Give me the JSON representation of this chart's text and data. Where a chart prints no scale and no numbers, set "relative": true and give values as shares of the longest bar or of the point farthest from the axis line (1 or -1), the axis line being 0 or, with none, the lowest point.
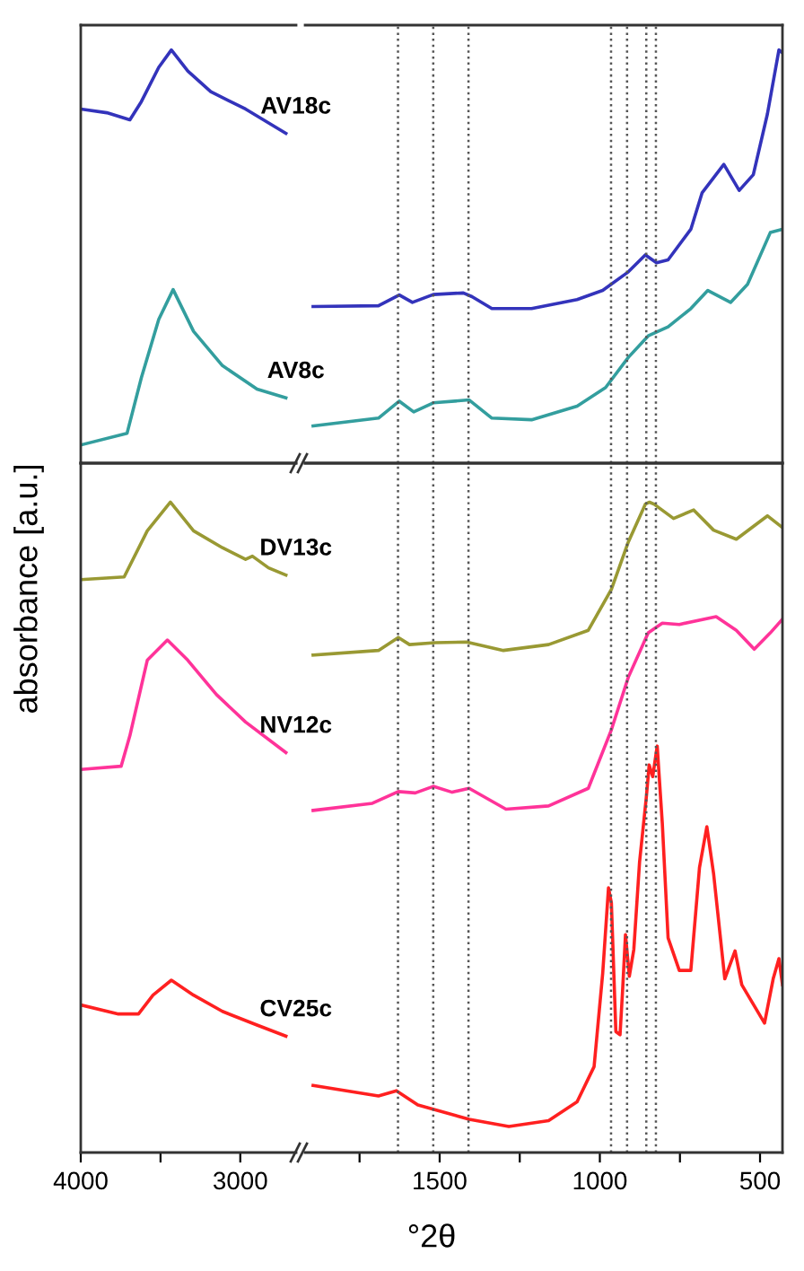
{
  "chart_data": [
    {
      "type": "line",
      "relative": true,
      "ylabel": "absorbance [a.u.]",
      "xlim": [
        4000,
        2650
      ],
      "tick_labels": false,
      "line_style": "solid",
      "marker": "none",
      "grid": false,
      "legend": false,
      "series": [
        {
          "name": "AV18c",
          "color": "#3333bb",
          "x": [
            4000,
            3837,
            3692,
            3620,
            3511,
            3432,
            3329,
            3185,
            2967,
            2714
          ],
          "values": [
            0.857,
            0.848,
            0.831,
            0.875,
            0.958,
            1.0,
            0.949,
            0.899,
            0.857,
            0.798
          ]
        },
        {
          "name": "AV8c",
          "color": "#339e9e",
          "x": [
            4000,
            3710,
            3620,
            3511,
            3421,
            3293,
            3112,
            2895,
            2714
          ],
          "values": [
            0.044,
            0.072,
            0.207,
            0.348,
            0.42,
            0.319,
            0.236,
            0.179,
            0.158
          ]
        }
      ]
    },
    {
      "type": "line",
      "relative": true,
      "xlim": [
        1920,
        430
      ],
      "tick_labels": false,
      "line_style": "solid",
      "marker": "none",
      "grid": false,
      "legend": false,
      "ref_lines": [
        {
          "axis": "x",
          "value": 1630,
          "color": "#555555",
          "line_style": "dotted"
        },
        {
          "axis": "x",
          "value": 1520,
          "color": "#555555",
          "line_style": "dotted"
        },
        {
          "axis": "x",
          "value": 1410,
          "color": "#555555",
          "line_style": "dotted"
        },
        {
          "axis": "x",
          "value": 965,
          "color": "#555555",
          "line_style": "dotted"
        },
        {
          "axis": "x",
          "value": 915,
          "color": "#555555",
          "line_style": "dotted"
        },
        {
          "axis": "x",
          "value": 855,
          "color": "#555555",
          "line_style": "dotted"
        },
        {
          "axis": "x",
          "value": 825,
          "color": "#555555",
          "line_style": "dotted"
        }
      ],
      "series": [
        {
          "color": "#3333bb",
          "x": [
            1895,
            1691,
            1626,
            1585,
            1520,
            1426,
            1399,
            1337,
            1213,
            1071,
            991,
            911,
            858,
            823,
            787,
            716,
            681,
            613,
            565,
            521,
            477,
            441,
            430
          ],
          "values": [
            0.379,
            0.381,
            0.407,
            0.389,
            0.408,
            0.412,
            0.403,
            0.374,
            0.374,
            0.396,
            0.418,
            0.463,
            0.504,
            0.485,
            0.492,
            0.566,
            0.654,
            0.723,
            0.66,
            0.698,
            0.845,
            1.0,
            0.993
          ]
        },
        {
          "color": "#339e9e",
          "x": [
            1895,
            1691,
            1626,
            1581,
            1520,
            1408,
            1337,
            1213,
            1071,
            982,
            911,
            849,
            787,
            716,
            663,
            592,
            539,
            468,
            430
          ],
          "values": [
            0.09,
            0.109,
            0.15,
            0.124,
            0.146,
            0.153,
            0.109,
            0.105,
            0.138,
            0.183,
            0.256,
            0.308,
            0.33,
            0.374,
            0.418,
            0.389,
            0.433,
            0.558,
            0.566
          ]
        }
      ]
    },
    {
      "type": "line",
      "relative": true,
      "xlim": [
        4000,
        2650
      ],
      "xticks": [
        4000,
        {
          "value": 3500,
          "label": null
        },
        3000
      ],
      "tick_labels": "x",
      "line_style": "solid",
      "marker": "none",
      "grid": false,
      "legend": false,
      "series": [
        {
          "name": "DV13c",
          "color": "#999933",
          "x": [
            4000,
            3728,
            3583,
            3438,
            3293,
            3112,
            2967,
            2924,
            2823,
            2714
          ],
          "values": [
            0.881,
            0.885,
            0.956,
            1.0,
            0.956,
            0.93,
            0.912,
            0.917,
            0.899,
            0.888
          ]
        },
        {
          "name": "NV12c",
          "color": "#ff3399",
          "x": [
            4000,
            3747,
            3692,
            3583,
            3457,
            3329,
            3149,
            2967,
            2714
          ],
          "values": [
            0.589,
            0.594,
            0.641,
            0.757,
            0.788,
            0.757,
            0.704,
            0.662,
            0.615
          ]
        },
        {
          "name": "CV25c",
          "color": "#ff2020",
          "x": [
            4000,
            3764,
            3638,
            3547,
            3432,
            3293,
            3112,
            2895,
            2714
          ],
          "values": [
            0.227,
            0.213,
            0.213,
            0.242,
            0.265,
            0.242,
            0.217,
            0.196,
            0.179
          ]
        }
      ]
    },
    {
      "type": "line",
      "relative": true,
      "xlabel": "°2θ",
      "xlim": [
        1920,
        430
      ],
      "xticks": [
        {
          "value": 1750,
          "label": null
        },
        1500,
        {
          "value": 1250,
          "label": null
        },
        1000,
        {
          "value": 750,
          "label": null
        },
        500
      ],
      "tick_labels": "x",
      "line_style": "solid",
      "marker": "none",
      "grid": false,
      "legend": false,
      "ref_lines": [
        {
          "axis": "x",
          "value": 1630,
          "color": "#555555",
          "line_style": "dotted"
        },
        {
          "axis": "x",
          "value": 1520,
          "color": "#555555",
          "line_style": "dotted"
        },
        {
          "axis": "x",
          "value": 1410,
          "color": "#555555",
          "line_style": "dotted"
        },
        {
          "axis": "x",
          "value": 965,
          "color": "#555555",
          "line_style": "dotted"
        },
        {
          "axis": "x",
          "value": 915,
          "color": "#555555",
          "line_style": "dotted"
        },
        {
          "axis": "x",
          "value": 855,
          "color": "#555555",
          "line_style": "dotted"
        },
        {
          "axis": "x",
          "value": 825,
          "color": "#555555",
          "line_style": "dotted"
        }
      ],
      "series": [
        {
          "color": "#999933",
          "x": [
            1895,
            1691,
            1629,
            1594,
            1514,
            1416,
            1301,
            1160,
            1036,
            964,
            911,
            858,
            845,
            831,
            770,
            707,
            645,
            574,
            477,
            430
          ],
          "values": [
            0.765,
            0.772,
            0.792,
            0.781,
            0.784,
            0.785,
            0.772,
            0.781,
            0.803,
            0.866,
            0.939,
            0.997,
            1.0,
            0.997,
            0.975,
            0.988,
            0.957,
            0.943,
            0.979,
            0.961
          ]
        },
        {
          "color": "#ff3399",
          "x": [
            1895,
            1710,
            1629,
            1576,
            1520,
            1461,
            1408,
            1293,
            1160,
            1036,
            964,
            911,
            849,
            805,
            752,
            637,
            574,
            518,
            468,
            430
          ],
          "values": [
            0.526,
            0.537,
            0.555,
            0.553,
            0.563,
            0.554,
            0.56,
            0.528,
            0.533,
            0.56,
            0.65,
            0.731,
            0.799,
            0.814,
            0.812,
            0.824,
            0.803,
            0.774,
            0.799,
            0.82
          ]
        },
        {
          "color": "#ff2020",
          "x": [
            1895,
            1691,
            1635,
            1568,
            1408,
            1284,
            1160,
            1071,
            1018,
            991,
            973,
            964,
            950,
            937,
            929,
            920,
            908,
            894,
            876,
            855,
            846,
            835,
            821,
            805,
            787,
            752,
            716,
            689,
            666,
            645,
            610,
            578,
            557,
            486,
            459,
            441,
            430
          ],
          "values": [
            0.103,
            0.087,
            0.095,
            0.073,
            0.051,
            0.04,
            0.049,
            0.078,
            0.132,
            0.276,
            0.407,
            0.384,
            0.186,
            0.181,
            0.249,
            0.335,
            0.271,
            0.312,
            0.447,
            0.546,
            0.596,
            0.578,
            0.625,
            0.506,
            0.33,
            0.28,
            0.28,
            0.438,
            0.501,
            0.429,
            0.267,
            0.31,
            0.258,
            0.199,
            0.267,
            0.298,
            0.258
          ]
        }
      ]
    }
  ]
}
